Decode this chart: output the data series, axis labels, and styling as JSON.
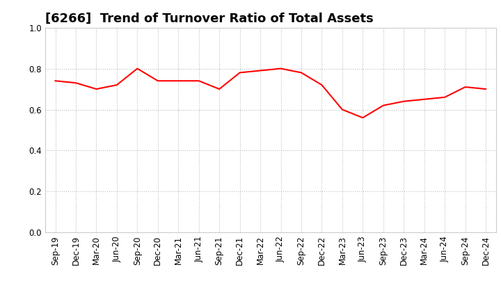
{
  "title": "[6266]  Trend of Turnover Ratio of Total Assets",
  "labels": [
    "Sep-19",
    "Dec-19",
    "Mar-20",
    "Jun-20",
    "Sep-20",
    "Dec-20",
    "Mar-21",
    "Jun-21",
    "Sep-21",
    "Dec-21",
    "Mar-22",
    "Jun-22",
    "Sep-22",
    "Dec-22",
    "Mar-23",
    "Jun-23",
    "Sep-23",
    "Dec-23",
    "Mar-24",
    "Jun-24",
    "Sep-24",
    "Dec-24"
  ],
  "values": [
    0.74,
    0.73,
    0.7,
    0.72,
    0.8,
    0.74,
    0.74,
    0.74,
    0.7,
    0.78,
    0.79,
    0.8,
    0.78,
    0.72,
    0.6,
    0.56,
    0.62,
    0.64,
    0.65,
    0.66,
    0.71,
    0.7
  ],
  "line_color": "#FF0000",
  "line_width": 1.5,
  "ylim": [
    0.0,
    1.0
  ],
  "yticks": [
    0.0,
    0.2,
    0.4,
    0.6,
    0.8,
    1.0
  ],
  "background_color": "#FFFFFF",
  "grid_color": "#BBBBBB",
  "title_fontsize": 13,
  "tick_fontsize": 8.5
}
